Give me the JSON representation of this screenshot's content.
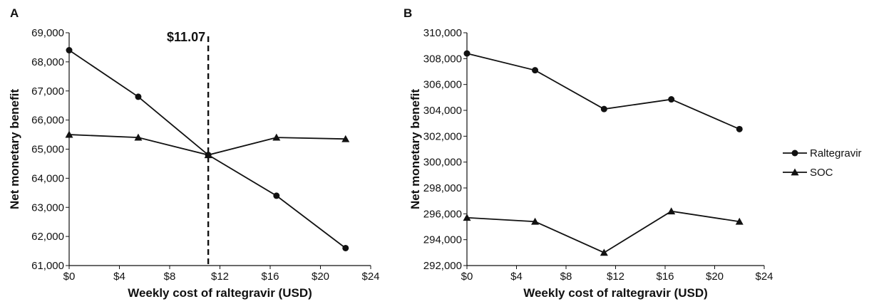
{
  "chart_data": [
    {
      "panel": "A",
      "type": "line",
      "xlabel": "Weekly cost of raltegravir (USD)",
      "ylabel": "Net monetary benefit",
      "xlim": [
        0,
        24
      ],
      "ylim": [
        61000,
        69000
      ],
      "x_ticks": [
        0,
        4,
        8,
        12,
        16,
        20,
        24
      ],
      "x_tick_labels": [
        "$0",
        "$4",
        "$8",
        "$12",
        "$16",
        "$20",
        "$24"
      ],
      "y_ticks": [
        61000,
        62000,
        63000,
        64000,
        65000,
        66000,
        67000,
        68000,
        69000
      ],
      "y_tick_labels": [
        "61,000",
        "62,000",
        "63,000",
        "64,000",
        "65,000",
        "66,000",
        "67,000",
        "68,000",
        "69,000"
      ],
      "grid": false,
      "series": [
        {
          "name": "Raltegravir",
          "marker": "circle",
          "x": [
            0,
            5.5,
            11.07,
            16.5,
            22
          ],
          "y": [
            68400,
            66800,
            64800,
            63400,
            61600
          ]
        },
        {
          "name": "SOC",
          "marker": "triangle",
          "x": [
            0,
            5.5,
            11.07,
            16.5,
            22
          ],
          "y": [
            65500,
            65400,
            64800,
            65400,
            65350
          ]
        }
      ],
      "annotations": [
        {
          "type": "vline",
          "x": 11.07,
          "style": "dashed",
          "label": "$11.07"
        }
      ]
    },
    {
      "panel": "B",
      "type": "line",
      "xlabel": "Weekly cost of raltegravir (USD)",
      "ylabel": "Net monetary benefit",
      "xlim": [
        0,
        24
      ],
      "ylim": [
        292000,
        310000
      ],
      "x_ticks": [
        0,
        4,
        8,
        12,
        16,
        20,
        24
      ],
      "x_tick_labels": [
        "$0",
        "$4",
        "$8",
        "$12",
        "$16",
        "$20",
        "$24"
      ],
      "y_ticks": [
        292000,
        294000,
        296000,
        298000,
        300000,
        302000,
        304000,
        306000,
        308000,
        310000
      ],
      "y_tick_labels": [
        "292,000",
        "294,000",
        "296,000",
        "298,000",
        "300,000",
        "302,000",
        "304,000",
        "306,000",
        "308,000",
        "310,000"
      ],
      "grid": false,
      "series": [
        {
          "name": "Raltegravir",
          "marker": "circle",
          "x": [
            0,
            5.5,
            11.07,
            16.5,
            22
          ],
          "y": [
            308400,
            307100,
            304100,
            304850,
            302550
          ]
        },
        {
          "name": "SOC",
          "marker": "triangle",
          "x": [
            0,
            5.5,
            11.07,
            16.5,
            22
          ],
          "y": [
            295700,
            295400,
            293000,
            296200,
            295400
          ]
        }
      ],
      "legend": {
        "placement": "right",
        "entries": [
          {
            "label": "Raltegravir",
            "marker": "circle"
          },
          {
            "label": "SOC",
            "marker": "triangle"
          }
        ]
      }
    }
  ],
  "colors": {
    "line": "#111111",
    "background": "#ffffff"
  }
}
